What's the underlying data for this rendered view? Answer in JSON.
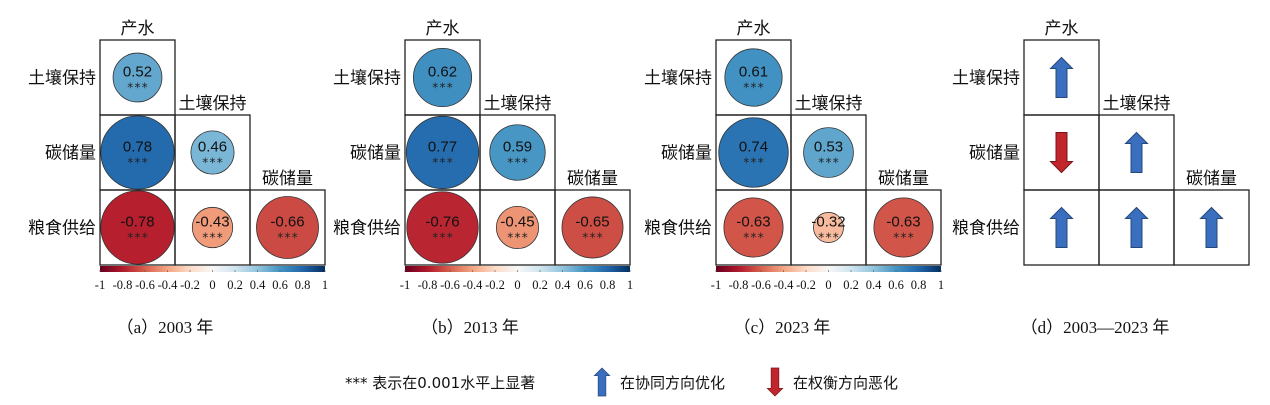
{
  "chart_data": {
    "type": "heatmap",
    "row_labels": [
      "土壤保持",
      "碳储量",
      "粮食供给"
    ],
    "col_labels": [
      "产水",
      "土壤保持",
      "碳储量"
    ],
    "colorbar": {
      "range": [
        -1,
        1
      ],
      "ticks": [
        "-1",
        "-0.8",
        "-0.6",
        "-0.4",
        "-0.2",
        "0",
        "0.2",
        "0.4",
        "0.6",
        "0.8",
        "1"
      ],
      "colormap": "RdBu"
    },
    "significance_mark": "***",
    "panels": [
      {
        "caption": "（a）2003 年",
        "values": [
          [
            0.52
          ],
          [
            0.78,
            0.46
          ],
          [
            -0.78,
            -0.43,
            -0.66
          ]
        ],
        "labels": [
          [
            "0.52"
          ],
          [
            "0.78",
            "0.46"
          ],
          [
            "-0.78",
            "-0.43",
            "-0.66"
          ]
        ]
      },
      {
        "caption": "（b）2013 年",
        "values": [
          [
            0.62
          ],
          [
            0.77,
            0.59
          ],
          [
            -0.76,
            -0.45,
            -0.65
          ]
        ],
        "labels": [
          [
            "0.62"
          ],
          [
            "0.77",
            "0.59"
          ],
          [
            "-0.76",
            "-0.45",
            "-0.65"
          ]
        ]
      },
      {
        "caption": "（c）2023 年",
        "values": [
          [
            0.61
          ],
          [
            0.74,
            0.53
          ],
          [
            -0.63,
            -0.32,
            -0.63
          ]
        ],
        "labels": [
          [
            "0.61"
          ],
          [
            "0.74",
            "0.53"
          ],
          [
            "-0.63",
            "-0.32",
            "-0.63"
          ]
        ]
      }
    ],
    "change_panel": {
      "caption": "（d）2003—2023 年",
      "directions": [
        [
          "up"
        ],
        [
          "down",
          "up"
        ],
        [
          "up",
          "up",
          "up"
        ]
      ]
    }
  },
  "legend": {
    "significance_text": "*** 表示在0.001水平上显著",
    "up_text": "在协同方向优化",
    "down_text": "在权衡方向恶化",
    "up_color": "#3a6fbf",
    "down_color": "#c0262b"
  }
}
